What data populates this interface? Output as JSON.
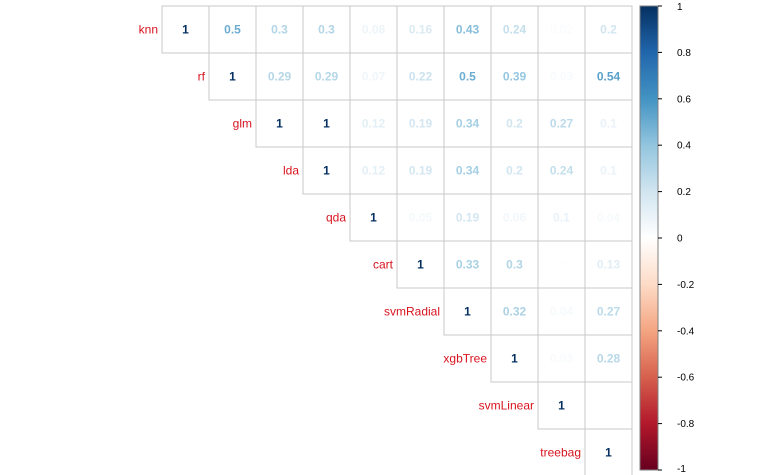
{
  "chart_data": {
    "type": "heatmap",
    "subtype": "correlation-matrix-upper",
    "variables": [
      "knn",
      "rf",
      "glm",
      "lda",
      "qda",
      "cart",
      "svmRadial",
      "xgbTree",
      "svmLinear",
      "treebag"
    ],
    "matrix": [
      [
        1,
        0.5,
        0.3,
        0.3,
        0.08,
        0.16,
        0.43,
        0.24,
        0.02,
        0.2
      ],
      [
        null,
        1,
        0.29,
        0.29,
        0.07,
        0.22,
        0.5,
        0.39,
        0.03,
        0.54
      ],
      [
        null,
        null,
        1,
        1,
        0.12,
        0.19,
        0.34,
        0.2,
        0.27,
        0.1
      ],
      [
        null,
        null,
        null,
        1,
        0.12,
        0.19,
        0.34,
        0.2,
        0.24,
        0.1
      ],
      [
        null,
        null,
        null,
        null,
        1,
        0.05,
        0.19,
        0.06,
        0.1,
        0.04
      ],
      [
        null,
        null,
        null,
        null,
        null,
        1,
        0.33,
        0.3,
        0.01,
        0.13
      ],
      [
        null,
        null,
        null,
        null,
        null,
        null,
        1,
        0.32,
        0.04,
        0.27
      ],
      [
        null,
        null,
        null,
        null,
        null,
        null,
        null,
        1,
        0.03,
        0.28
      ],
      [
        null,
        null,
        null,
        null,
        null,
        null,
        null,
        null,
        1,
        0
      ],
      [
        null,
        null,
        null,
        null,
        null,
        null,
        null,
        null,
        null,
        1
      ]
    ],
    "display_labels": [
      [
        "1",
        "0.5",
        "0.3",
        "0.3",
        "0.08",
        "0.16",
        "0.43",
        "0.24",
        "0.02",
        "0.2"
      ],
      [
        null,
        "1",
        "0.29",
        "0.29",
        "0.07",
        "0.22",
        "0.5",
        "0.39",
        "0.03",
        "0.54"
      ],
      [
        null,
        null,
        "1",
        "1",
        "0.12",
        "0.19",
        "0.34",
        "0.2",
        "0.27",
        "0.1"
      ],
      [
        null,
        null,
        null,
        "1",
        "0.12",
        "0.19",
        "0.34",
        "0.2",
        "0.24",
        "0.1"
      ],
      [
        null,
        null,
        null,
        null,
        "1",
        "0.05",
        "0.19",
        "0.06",
        "0.1",
        "0.04"
      ],
      [
        null,
        null,
        null,
        null,
        null,
        "1",
        "0.33",
        "0.3",
        "0.01",
        "0.13"
      ],
      [
        null,
        null,
        null,
        null,
        null,
        null,
        "1",
        "0.32",
        "0.04",
        "0.27"
      ],
      [
        null,
        null,
        null,
        null,
        null,
        null,
        null,
        "1",
        "0.03",
        "0.28"
      ],
      [
        null,
        null,
        null,
        null,
        null,
        null,
        null,
        null,
        "1",
        ""
      ],
      [
        null,
        null,
        null,
        null,
        null,
        null,
        null,
        null,
        null,
        "1"
      ]
    ],
    "color_range": [
      -1,
      1
    ],
    "colorbar_ticks": [
      "1",
      "0.8",
      "0.6",
      "0.4",
      "0.2",
      "0",
      "-0.2",
      "-0.4",
      "-0.6",
      "-0.8",
      "-1"
    ],
    "colors": {
      "negative": "#67001f",
      "zero": "#ffffff",
      "positive": "#053061",
      "label": "#d8131f"
    },
    "legend_position": "right",
    "title": ""
  }
}
